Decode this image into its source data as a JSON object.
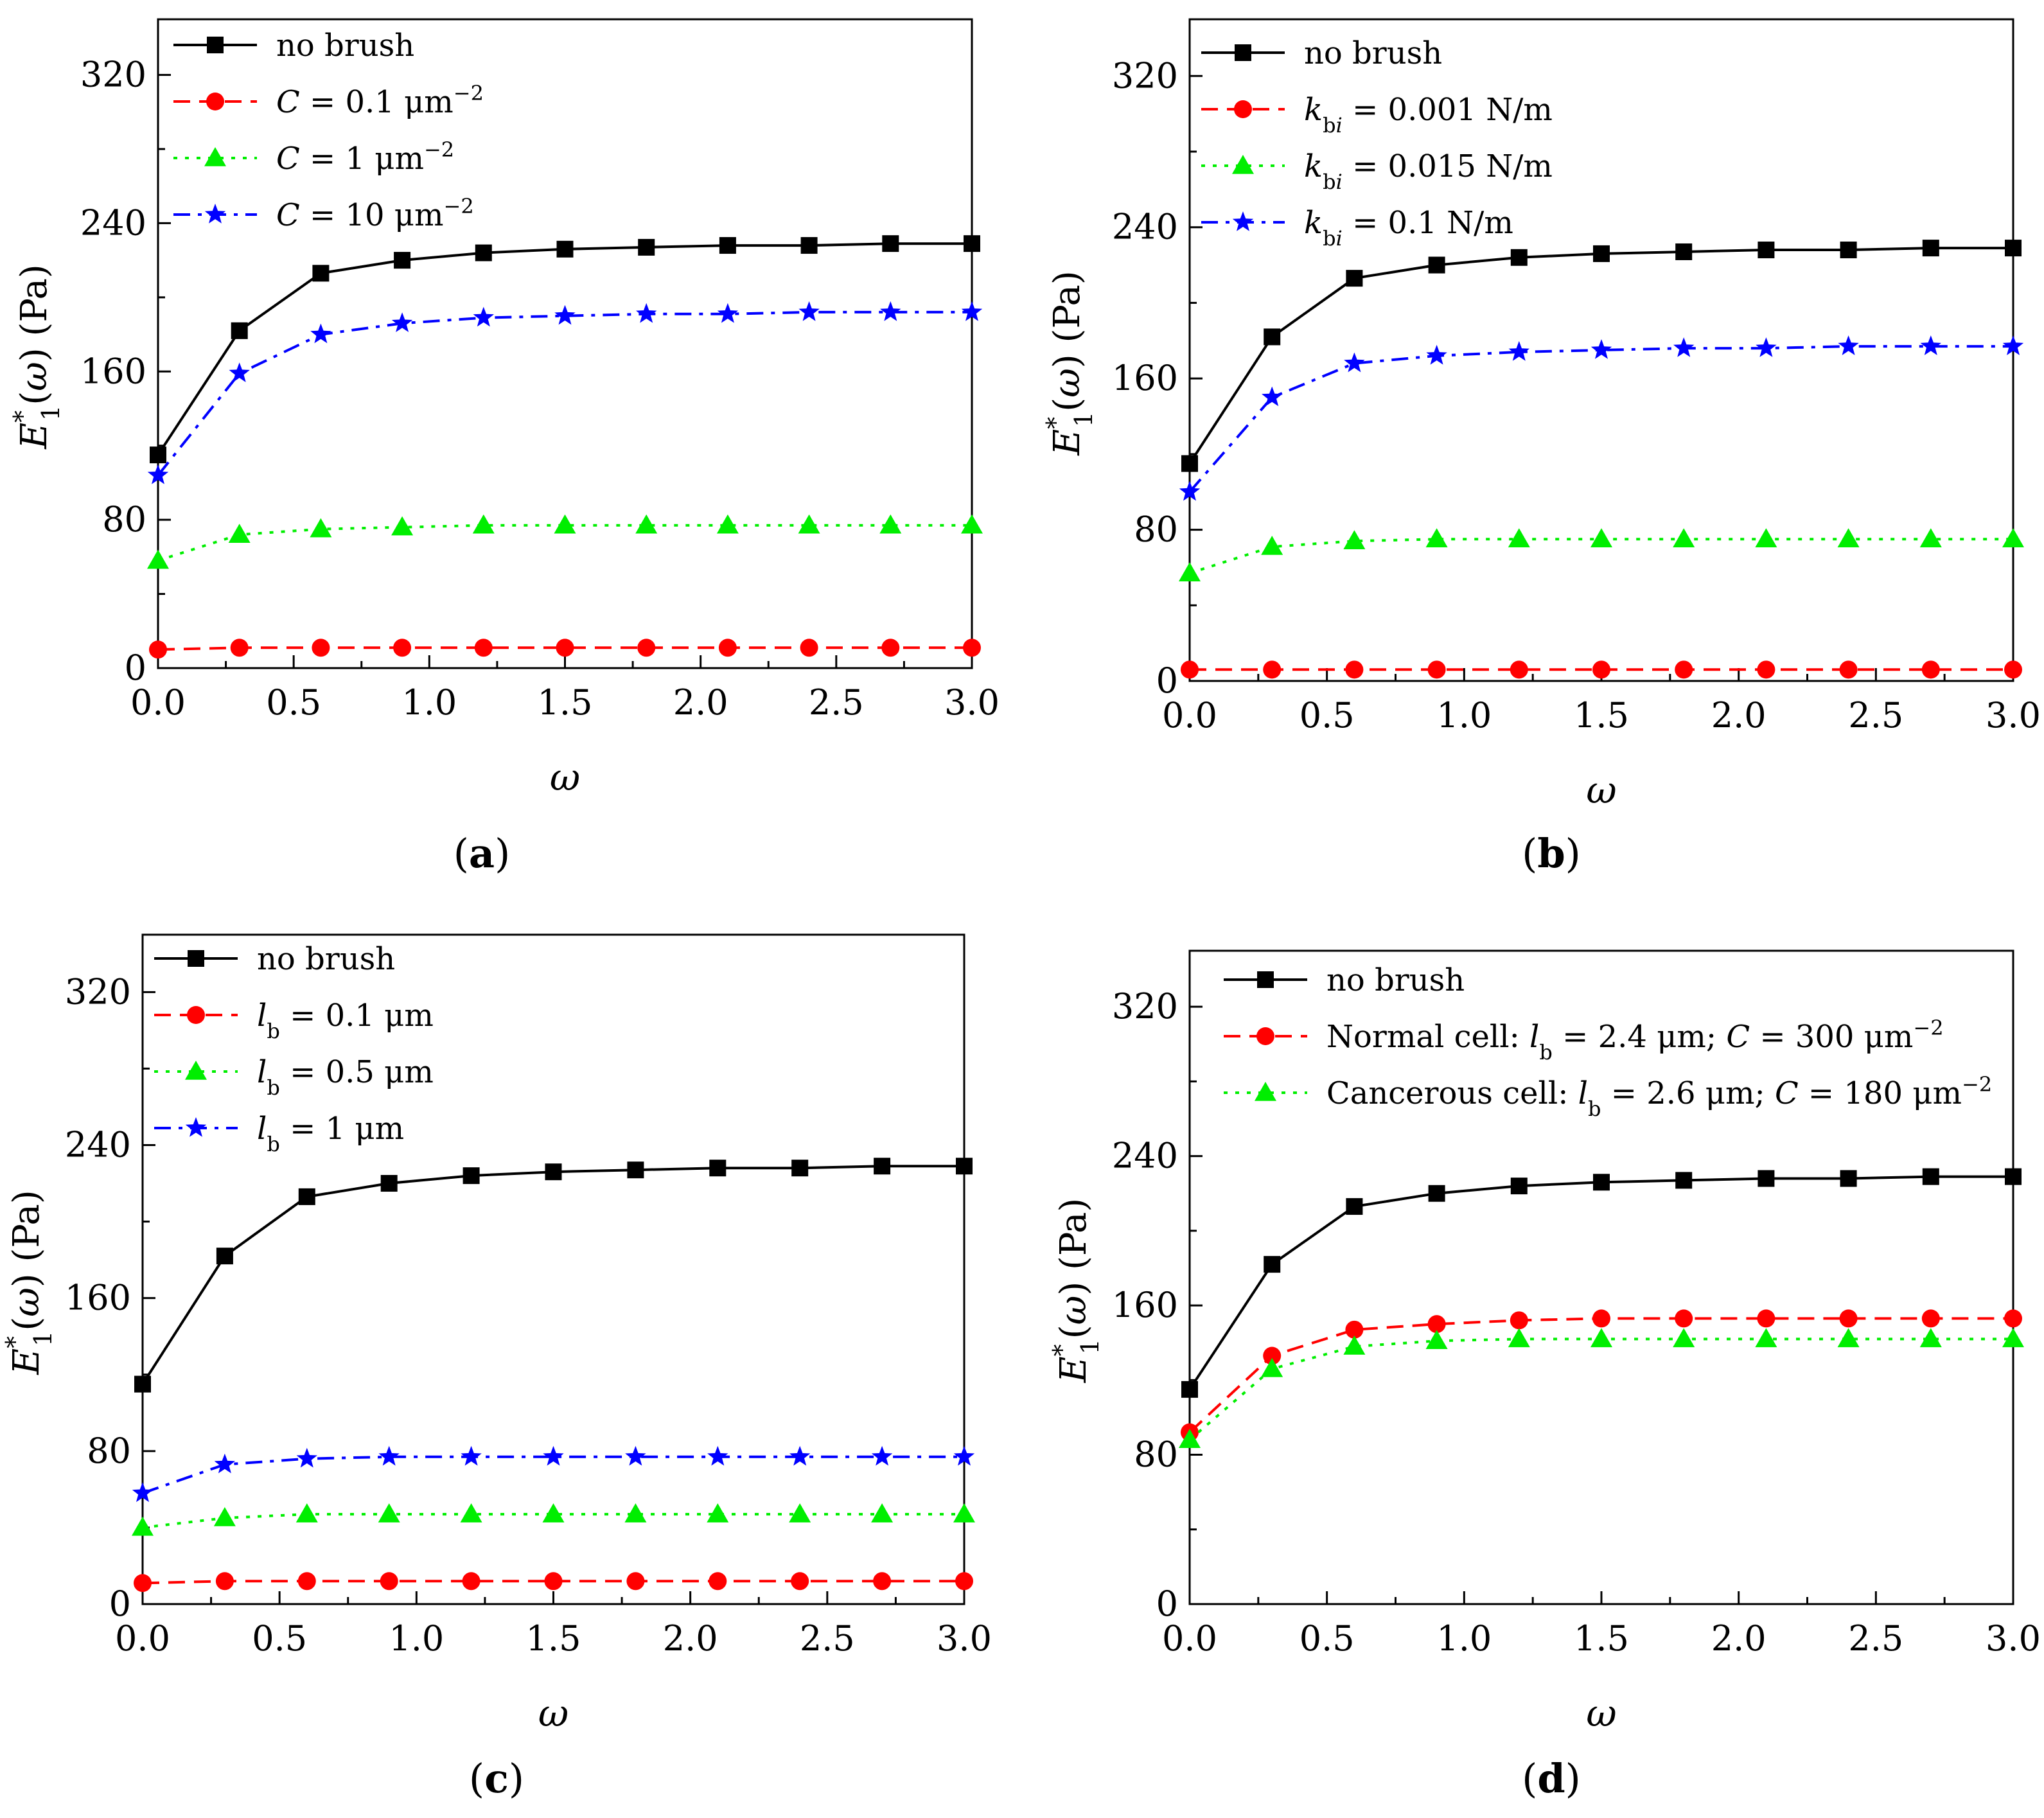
{
  "chart_data": [
    {
      "type": "line",
      "panel_label": "(a)",
      "xlabel": "ω",
      "ylabel_main": "E",
      "ylabel_sup": "*",
      "ylabel_sub": "1",
      "ylabel_rest": "(ω) (Pa)",
      "xlim": [
        0,
        3
      ],
      "ylim": [
        0,
        350
      ],
      "x_ticks": [
        "0.0",
        "0.5",
        "1.0",
        "1.5",
        "2.0",
        "2.5",
        "3.0"
      ],
      "y_ticks": [
        "0",
        "80",
        "160",
        "240",
        "320"
      ],
      "legend_position": "top-left",
      "x": [
        0.0,
        0.3,
        0.6,
        0.9,
        1.2,
        1.5,
        1.8,
        2.1,
        2.4,
        2.7,
        3.0
      ],
      "series": [
        {
          "name": "no brush",
          "color": "#000000",
          "marker": "square",
          "dash": "solid",
          "legend": [
            {
              "t": "no brush"
            }
          ],
          "values": [
            115,
            182,
            213,
            220,
            224,
            226,
            227,
            228,
            228,
            229,
            229
          ]
        },
        {
          "name": "C = 0.1 μm−2",
          "color": "#ff0000",
          "marker": "circle",
          "dash": "dash",
          "legend": [
            {
              "t": "C",
              "i": true
            },
            {
              "t": " = 0.1 μm"
            },
            {
              "t": "−2",
              "sup": true
            }
          ],
          "values": [
            10,
            11,
            11,
            11,
            11,
            11,
            11,
            11,
            11,
            11,
            11
          ]
        },
        {
          "name": "C = 1 μm−2",
          "color": "#00ee00",
          "marker": "triangle",
          "dash": "dot",
          "legend": [
            {
              "t": "C",
              "i": true
            },
            {
              "t": " = 1 μm"
            },
            {
              "t": "−2",
              "sup": true
            }
          ],
          "values": [
            58,
            72,
            75,
            76,
            77,
            77,
            77,
            77,
            77,
            77,
            77
          ]
        },
        {
          "name": "C = 10 μm−2",
          "color": "#0000ff",
          "marker": "star",
          "dash": "dashdot",
          "legend": [
            {
              "t": "C",
              "i": true
            },
            {
              "t": " = 10 μm"
            },
            {
              "t": "−2",
              "sup": true
            }
          ],
          "values": [
            104,
            159,
            180,
            186,
            189,
            190,
            191,
            191,
            192,
            192,
            192
          ]
        }
      ]
    },
    {
      "type": "line",
      "panel_label": "(b)",
      "xlabel": "ω",
      "ylabel_main": "E",
      "ylabel_sup": "*",
      "ylabel_sub": "1",
      "ylabel_rest": "(ω) (Pa)",
      "xlim": [
        0,
        3
      ],
      "ylim": [
        0,
        350
      ],
      "x_ticks": [
        "0.0",
        "0.5",
        "1.0",
        "1.5",
        "2.0",
        "2.5",
        "3.0"
      ],
      "y_ticks": [
        "0",
        "80",
        "160",
        "240",
        "320"
      ],
      "legend_position": "top-left",
      "x": [
        0.0,
        0.3,
        0.6,
        0.9,
        1.2,
        1.5,
        1.8,
        2.1,
        2.4,
        2.7,
        3.0
      ],
      "series": [
        {
          "name": "no brush",
          "color": "#000000",
          "marker": "square",
          "dash": "solid",
          "legend": [
            {
              "t": "no brush"
            }
          ],
          "values": [
            115,
            182,
            213,
            220,
            224,
            226,
            227,
            228,
            228,
            229,
            229
          ]
        },
        {
          "name": "kbi = 0.001 N/m",
          "color": "#ff0000",
          "marker": "circle",
          "dash": "dash",
          "legend": [
            {
              "t": "k",
              "i": true
            },
            {
              "t": "b",
              "sub": true
            },
            {
              "t": "i",
              "sub": true,
              "i": true
            },
            {
              "t": " = 0.001 N/m"
            }
          ],
          "values": [
            6,
            6,
            6,
            6,
            6,
            6,
            6,
            6,
            6,
            6,
            6
          ]
        },
        {
          "name": "kbi = 0.015 N/m",
          "color": "#00ee00",
          "marker": "triangle",
          "dash": "dot",
          "legend": [
            {
              "t": "k",
              "i": true
            },
            {
              "t": "b",
              "sub": true
            },
            {
              "t": "i",
              "sub": true,
              "i": true
            },
            {
              "t": " = 0.015 N/m"
            }
          ],
          "values": [
            57,
            71,
            74,
            75,
            75,
            75,
            75,
            75,
            75,
            75,
            75
          ]
        },
        {
          "name": "kbi = 0.1 N/m",
          "color": "#0000ff",
          "marker": "star",
          "dash": "dashdot",
          "legend": [
            {
              "t": "k",
              "i": true
            },
            {
              "t": "b",
              "sub": true
            },
            {
              "t": "i",
              "sub": true,
              "i": true
            },
            {
              "t": " = 0.1 N/m"
            }
          ],
          "values": [
            100,
            150,
            168,
            172,
            174,
            175,
            176,
            176,
            177,
            177,
            177
          ]
        }
      ]
    },
    {
      "type": "line",
      "panel_label": "(c)",
      "xlabel": "ω",
      "ylabel_main": "E",
      "ylabel_sup": "*",
      "ylabel_sub": "1",
      "ylabel_rest": "(ω) (Pa)",
      "xlim": [
        0,
        3
      ],
      "ylim": [
        0,
        350
      ],
      "x_ticks": [
        "0.0",
        "0.5",
        "1.0",
        "1.5",
        "2.0",
        "2.5",
        "3.0"
      ],
      "y_ticks": [
        "0",
        "80",
        "160",
        "240",
        "320"
      ],
      "legend_position": "top-left",
      "x": [
        0.0,
        0.3,
        0.6,
        0.9,
        1.2,
        1.5,
        1.8,
        2.1,
        2.4,
        2.7,
        3.0
      ],
      "series": [
        {
          "name": "no brush",
          "color": "#000000",
          "marker": "square",
          "dash": "solid",
          "legend": [
            {
              "t": "no brush"
            }
          ],
          "values": [
            115,
            182,
            213,
            220,
            224,
            226,
            227,
            228,
            228,
            229,
            229
          ]
        },
        {
          "name": "lb = 0.1 μm",
          "color": "#ff0000",
          "marker": "circle",
          "dash": "dash",
          "legend": [
            {
              "t": "l",
              "i": true
            },
            {
              "t": "b",
              "sub": true
            },
            {
              "t": " = 0.1 μm"
            }
          ],
          "values": [
            11,
            12,
            12,
            12,
            12,
            12,
            12,
            12,
            12,
            12,
            12
          ]
        },
        {
          "name": "lb = 0.5 μm",
          "color": "#00ee00",
          "marker": "triangle",
          "dash": "dot",
          "legend": [
            {
              "t": "l",
              "i": true
            },
            {
              "t": "b",
              "sub": true
            },
            {
              "t": " = 0.5 μm"
            }
          ],
          "values": [
            40,
            45,
            47,
            47,
            47,
            47,
            47,
            47,
            47,
            47,
            47
          ]
        },
        {
          "name": "lb = 1 μm",
          "color": "#0000ff",
          "marker": "star",
          "dash": "dashdot",
          "legend": [
            {
              "t": "l",
              "i": true
            },
            {
              "t": "b",
              "sub": true
            },
            {
              "t": " = 1 μm"
            }
          ],
          "values": [
            58,
            73,
            76,
            77,
            77,
            77,
            77,
            77,
            77,
            77,
            77
          ]
        }
      ]
    },
    {
      "type": "line",
      "panel_label": "(d)",
      "xlabel": "ω",
      "ylabel_main": "E",
      "ylabel_sup": "*",
      "ylabel_sub": "1",
      "ylabel_rest": "(ω) (Pa)",
      "xlim": [
        0,
        3
      ],
      "ylim": [
        0,
        350
      ],
      "x_ticks": [
        "0.0",
        "0.5",
        "1.0",
        "1.5",
        "2.0",
        "2.5",
        "3.0"
      ],
      "y_ticks": [
        "0",
        "80",
        "160",
        "240",
        "320"
      ],
      "legend_position": "top-left",
      "x": [
        0.0,
        0.3,
        0.6,
        0.9,
        1.2,
        1.5,
        1.8,
        2.1,
        2.4,
        2.7,
        3.0
      ],
      "series": [
        {
          "name": "no brush",
          "color": "#000000",
          "marker": "square",
          "dash": "solid",
          "legend": [
            {
              "t": "no brush"
            }
          ],
          "values": [
            115,
            182,
            213,
            220,
            224,
            226,
            227,
            228,
            228,
            229,
            229
          ]
        },
        {
          "name": "Normal cell: lb = 2.4 μm; C = 300 μm−2",
          "color": "#ff0000",
          "marker": "circle",
          "dash": "dash",
          "legend": [
            {
              "t": "Normal cell: "
            },
            {
              "t": "l",
              "i": true
            },
            {
              "t": "b",
              "sub": true
            },
            {
              "t": " = 2.4 μm; "
            },
            {
              "t": "C",
              "i": true
            },
            {
              "t": " = 300 μm"
            },
            {
              "t": "−2",
              "sup": true
            }
          ],
          "values": [
            92,
            133,
            147,
            150,
            152,
            153,
            153,
            153,
            153,
            153,
            153
          ]
        },
        {
          "name": "Cancerous cell: lb = 2.6 μm; C = 180 μm−2",
          "color": "#00ee00",
          "marker": "triangle",
          "dash": "dot",
          "legend": [
            {
              "t": "Cancerous cell: "
            },
            {
              "t": "l",
              "i": true
            },
            {
              "t": "b",
              "sub": true
            },
            {
              "t": " = 2.6 μm; "
            },
            {
              "t": "C",
              "i": true
            },
            {
              "t": " = 180 μm"
            },
            {
              "t": "−2",
              "sup": true
            }
          ],
          "values": [
            88,
            126,
            138,
            141,
            142,
            142,
            142,
            142,
            142,
            142,
            142
          ]
        }
      ]
    }
  ]
}
